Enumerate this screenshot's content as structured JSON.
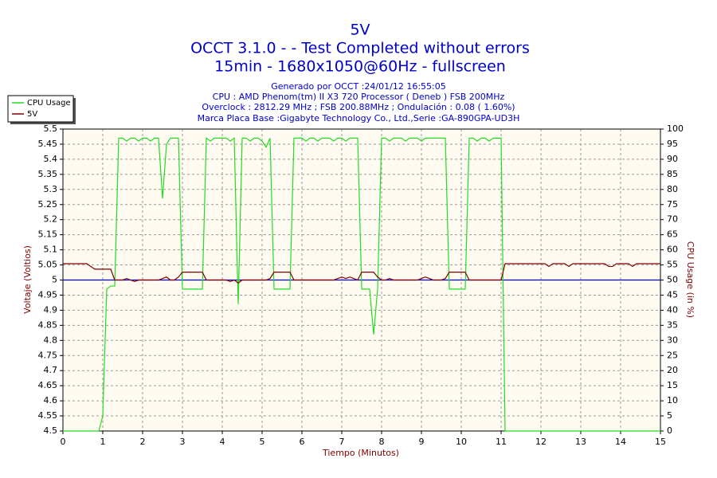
{
  "chart_data": {
    "type": "line",
    "title": "5V",
    "subtitle": [
      "OCCT 3.1.0 -  - Test Completed without errors",
      "15min - 1680x1050@60Hz - fullscreen"
    ],
    "info": [
      "Generado por OCCT :24/01/12 16:55:05",
      "CPU : AMD Phenom(tm) II X3 720 Processor ( Deneb ) FSB 200MHz",
      "Overclock : 2812.29 MHz ; FSB 200.88MHz ; Ondulación : 0.08 ( 1.60%)",
      "Marca Placa Base :Gigabyte Technology Co., Ltd.,Serie :GA-890GPA-UD3H"
    ],
    "x_label": "Tiempo (Minutos)",
    "y_label": "Voltaje (Voltios)",
    "y2_label": "CPU Usage (in %)",
    "x": [
      0,
      0.1,
      0.2,
      0.3,
      0.4,
      0.5,
      0.6,
      0.7,
      0.8,
      0.9,
      1,
      1.1,
      1.2,
      1.3,
      1.4,
      1.5,
      1.6,
      1.7,
      1.8,
      1.9,
      2,
      2.1,
      2.2,
      2.3,
      2.4,
      2.5,
      2.6,
      2.7,
      2.8,
      2.9,
      3,
      3.1,
      3.2,
      3.3,
      3.4,
      3.5,
      3.6,
      3.7,
      3.8,
      3.9,
      4,
      4.1,
      4.2,
      4.3,
      4.4,
      4.5,
      4.6,
      4.7,
      4.8,
      4.9,
      5,
      5.1,
      5.2,
      5.3,
      5.4,
      5.5,
      5.6,
      5.7,
      5.8,
      5.9,
      6,
      6.1,
      6.2,
      6.3,
      6.4,
      6.5,
      6.6,
      6.7,
      6.8,
      6.9,
      7,
      7.1,
      7.2,
      7.3,
      7.4,
      7.5,
      7.6,
      7.7,
      7.8,
      7.9,
      8,
      8.1,
      8.2,
      8.3,
      8.4,
      8.5,
      8.6,
      8.7,
      8.8,
      8.9,
      9,
      9.1,
      9.2,
      9.3,
      9.4,
      9.5,
      9.6,
      9.7,
      9.8,
      9.9,
      10,
      10.1,
      10.2,
      10.3,
      10.4,
      10.5,
      10.6,
      10.7,
      10.8,
      10.9,
      11,
      11.1,
      11.2,
      11.3,
      11.4,
      11.5,
      11.6,
      11.7,
      11.8,
      11.9,
      12,
      12.1,
      12.2,
      12.3,
      12.4,
      12.5,
      12.6,
      12.7,
      12.8,
      12.9,
      13,
      13.1,
      13.2,
      13.3,
      13.4,
      13.5,
      13.6,
      13.7,
      13.8,
      13.9,
      14,
      14.1,
      14.2,
      14.3,
      14.4,
      14.5,
      14.6,
      14.7,
      14.8,
      14.9,
      15
    ],
    "series": [
      {
        "name": "CPU Usage",
        "color": "#22dd22",
        "axis": "y2",
        "values": [
          0,
          0,
          0,
          0,
          0,
          0,
          0,
          0,
          0,
          0,
          5,
          47,
          48,
          48,
          97,
          97,
          96,
          97,
          97,
          96,
          97,
          97,
          96,
          97,
          97,
          77,
          95,
          97,
          97,
          97,
          47,
          47,
          47,
          47,
          47,
          47,
          97,
          96,
          97,
          97,
          97,
          97,
          96,
          97,
          42,
          97,
          97,
          96,
          97,
          97,
          96,
          94,
          97,
          47,
          47,
          47,
          47,
          47,
          97,
          97,
          97,
          96,
          97,
          97,
          96,
          97,
          97,
          97,
          96,
          97,
          97,
          96,
          97,
          97,
          97,
          47,
          47,
          47,
          32,
          47,
          97,
          97,
          96,
          97,
          97,
          97,
          96,
          97,
          97,
          97,
          96,
          97,
          97,
          97,
          97,
          97,
          97,
          47,
          47,
          47,
          47,
          47,
          97,
          97,
          96,
          97,
          97,
          96,
          97,
          97,
          97,
          0,
          0,
          0,
          0,
          0,
          0,
          0,
          0,
          0,
          0,
          0,
          0,
          0,
          0,
          0,
          0,
          0,
          0,
          0,
          0,
          0,
          0,
          0,
          0,
          0,
          0,
          0,
          0,
          0,
          0,
          0,
          0,
          0,
          0,
          0,
          0,
          0,
          0,
          0,
          0
        ]
      },
      {
        "name": "5V",
        "color": "#800000",
        "values": [
          5.054,
          5.054,
          5.054,
          5.054,
          5.054,
          5.054,
          5.054,
          5.045,
          5.036,
          5.036,
          5.036,
          5.036,
          5.036,
          5.0,
          5.0,
          5.0,
          5.005,
          5.0,
          4.995,
          5.0,
          5.0,
          5.0,
          5.0,
          5.0,
          5.0,
          5.005,
          5.01,
          5.0,
          5.0,
          5.01,
          5.026,
          5.026,
          5.026,
          5.026,
          5.026,
          5.026,
          5.0,
          5.0,
          5.0,
          5.0,
          5.0,
          5.0,
          4.995,
          5.0,
          4.99,
          5.0,
          5.0,
          5.0,
          5.0,
          5.0,
          5.0,
          5.0,
          5.005,
          5.026,
          5.026,
          5.026,
          5.026,
          5.026,
          5.0,
          5.0,
          5.0,
          5.0,
          5.0,
          5.0,
          5.0,
          5.0,
          5.0,
          5.0,
          5.0,
          5.005,
          5.01,
          5.005,
          5.01,
          5.005,
          5.0,
          5.026,
          5.026,
          5.026,
          5.026,
          5.01,
          5.0,
          5.0,
          5.005,
          5.0,
          5.0,
          5.0,
          5.0,
          5.0,
          5.0,
          5.0,
          5.005,
          5.01,
          5.005,
          5.0,
          5.0,
          5.0,
          5.005,
          5.026,
          5.026,
          5.026,
          5.026,
          5.026,
          5.0,
          5.0,
          5.0,
          5.0,
          5.0,
          5.0,
          5.0,
          5.0,
          5.0,
          5.054,
          5.054,
          5.054,
          5.054,
          5.054,
          5.054,
          5.054,
          5.054,
          5.054,
          5.054,
          5.054,
          5.045,
          5.054,
          5.054,
          5.054,
          5.054,
          5.045,
          5.054,
          5.054,
          5.054,
          5.054,
          5.054,
          5.054,
          5.054,
          5.054,
          5.054,
          5.045,
          5.045,
          5.054,
          5.054,
          5.054,
          5.054,
          5.045,
          5.054,
          5.054,
          5.054,
          5.054,
          5.054,
          5.054,
          5.054
        ]
      }
    ],
    "reference_line": {
      "value": 5,
      "color": "#0000cc"
    },
    "xlim": [
      0,
      15
    ],
    "xticks": [
      0,
      1,
      2,
      3,
      4,
      5,
      6,
      7,
      8,
      9,
      10,
      11,
      12,
      13,
      14,
      15
    ],
    "ylim": [
      4.5,
      5.5
    ],
    "yticks": [
      4.5,
      4.55,
      4.6,
      4.65,
      4.7,
      4.75,
      4.8,
      4.85,
      4.9,
      4.95,
      5,
      5.05,
      5.1,
      5.15,
      5.2,
      5.25,
      5.3,
      5.35,
      5.4,
      5.45,
      5.5
    ],
    "y2lim": [
      0,
      100
    ],
    "y2ticks": [
      0,
      5,
      10,
      15,
      20,
      25,
      30,
      35,
      40,
      45,
      50,
      55,
      60,
      65,
      70,
      75,
      80,
      85,
      90,
      95,
      100
    ],
    "grid": true,
    "legend": "top-left"
  }
}
